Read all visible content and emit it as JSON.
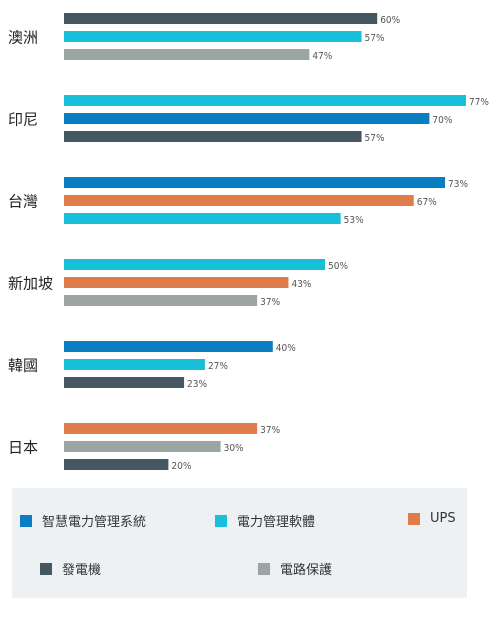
{
  "colors": {
    "smart_pms": "#0a7ec2",
    "pms_software": "#17c0d8",
    "ups": "#e07b4a",
    "generator": "#455760",
    "circuit_protection": "#9aa5a4"
  },
  "chart_data": {
    "type": "bar",
    "orientation": "horizontal",
    "xlim": [
      0,
      100
    ],
    "categories": [
      "澳洲",
      "印尼",
      "台灣",
      "新加坡",
      "韓國",
      "日本"
    ],
    "groups": [
      {
        "category": "澳洲",
        "bars": [
          {
            "series": "發電機",
            "value": 60,
            "label": "60%"
          },
          {
            "series": "電力管理軟體",
            "value": 57,
            "label": "57%"
          },
          {
            "series": "電路保護",
            "value": 47,
            "label": "47%"
          }
        ]
      },
      {
        "category": "印尼",
        "bars": [
          {
            "series": "電力管理軟體",
            "value": 77,
            "label": "77%"
          },
          {
            "series": "智慧電力管理系統",
            "value": 70,
            "label": "70%"
          },
          {
            "series": "發電機",
            "value": 57,
            "label": "57%"
          }
        ]
      },
      {
        "category": "台灣",
        "bars": [
          {
            "series": "智慧電力管理系統",
            "value": 73,
            "label": "73%"
          },
          {
            "series": "UPS",
            "value": 67,
            "label": "67%"
          },
          {
            "series": "電力管理軟體",
            "value": 53,
            "label": "53%"
          }
        ]
      },
      {
        "category": "新加坡",
        "bars": [
          {
            "series": "電力管理軟體",
            "value": 50,
            "label": "50%"
          },
          {
            "series": "UPS",
            "value": 43,
            "label": "43%"
          },
          {
            "series": "電路保護",
            "value": 37,
            "label": "37%"
          }
        ]
      },
      {
        "category": "韓國",
        "bars": [
          {
            "series": "智慧電力管理系統",
            "value": 40,
            "label": "40%"
          },
          {
            "series": "電力管理軟體",
            "value": 27,
            "label": "27%"
          },
          {
            "series": "發電機",
            "value": 23,
            "label": "23%"
          }
        ]
      },
      {
        "category": "日本",
        "bars": [
          {
            "series": "UPS",
            "value": 37,
            "label": "37%"
          },
          {
            "series": "電路保護",
            "value": 30,
            "label": "30%"
          },
          {
            "series": "發電機",
            "value": 20,
            "label": "20%"
          }
        ]
      }
    ],
    "legend": [
      {
        "name": "智慧電力管理系統",
        "color_key": "smart_pms"
      },
      {
        "name": "電力管理軟體",
        "color_key": "pms_software"
      },
      {
        "name": "UPS",
        "color_key": "ups"
      },
      {
        "name": "發電機",
        "color_key": "generator"
      },
      {
        "name": "電路保護",
        "color_key": "circuit_protection"
      }
    ],
    "legend_placement": "bottom",
    "grid": false
  }
}
